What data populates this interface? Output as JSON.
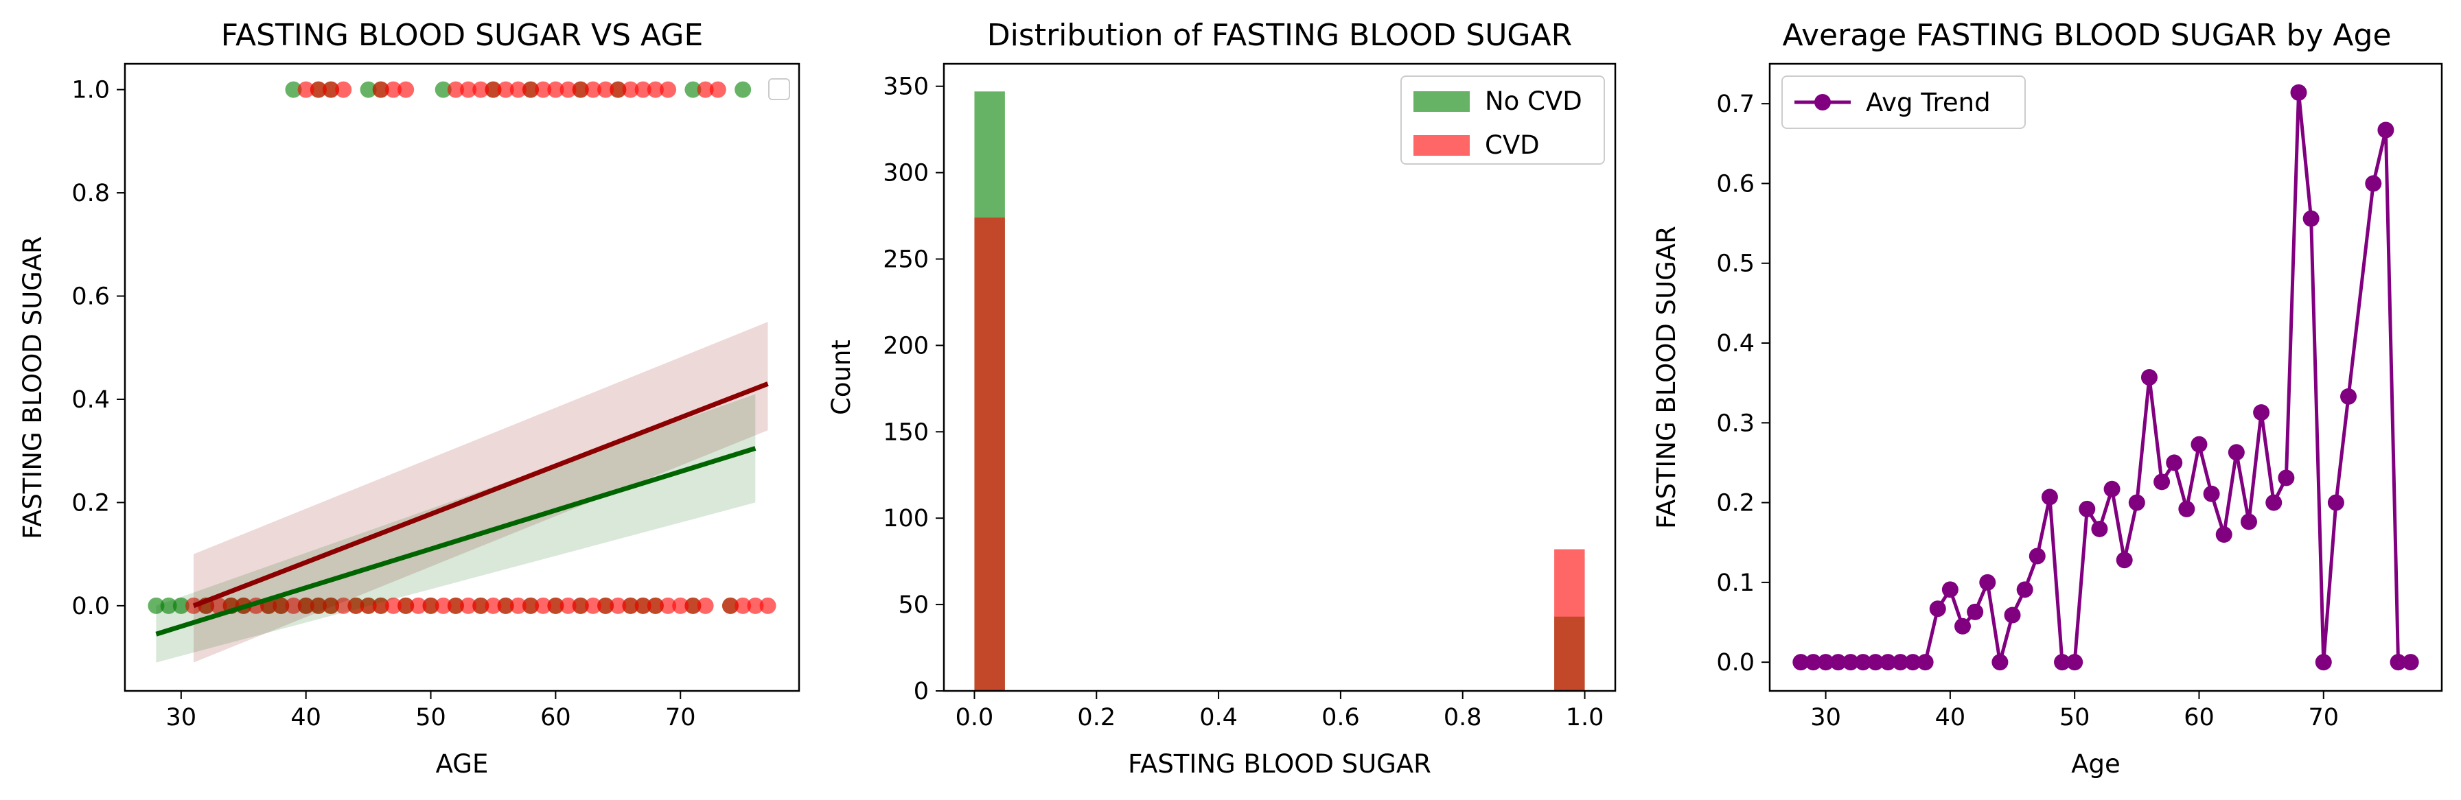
{
  "colors": {
    "no_cvd": "#008000",
    "cvd": "#ff0000",
    "cvd_line": "#8b0000",
    "no_cvd_line": "#006400",
    "trend": "#800080",
    "overlap": "#c04830"
  },
  "chart_data": [
    {
      "type": "scatter",
      "title": "FASTING BLOOD SUGAR VS AGE",
      "xlabel": "AGE",
      "ylabel": "FASTING BLOOD SUGAR",
      "xlim": [
        25.5,
        79.5
      ],
      "ylim": [
        -0.165,
        1.05
      ],
      "xticks": [
        30,
        40,
        50,
        60,
        70
      ],
      "yticks": [
        0.0,
        0.2,
        0.4,
        0.6,
        0.8,
        1.0
      ],
      "legend": "top-right (empty)",
      "series": [
        {
          "color": "no_cvd",
          "points": [
            [
              28,
              0
            ],
            [
              29,
              0
            ],
            [
              30,
              0
            ],
            [
              32,
              0
            ],
            [
              34,
              0
            ],
            [
              35,
              0
            ],
            [
              37,
              0
            ],
            [
              38,
              0
            ],
            [
              40,
              0
            ],
            [
              41,
              0
            ],
            [
              42,
              0
            ],
            [
              44,
              0
            ],
            [
              45,
              0
            ],
            [
              46,
              0
            ],
            [
              48,
              0
            ],
            [
              50,
              0
            ],
            [
              52,
              0
            ],
            [
              54,
              0
            ],
            [
              56,
              0
            ],
            [
              58,
              0
            ],
            [
              60,
              0
            ],
            [
              62,
              0
            ],
            [
              64,
              0
            ],
            [
              66,
              0
            ],
            [
              67,
              0
            ],
            [
              68,
              0
            ],
            [
              71,
              0
            ],
            [
              74,
              0
            ],
            [
              39,
              1
            ],
            [
              41,
              1
            ],
            [
              42,
              1
            ],
            [
              45,
              1
            ],
            [
              46,
              1
            ],
            [
              51,
              1
            ],
            [
              55,
              1
            ],
            [
              58,
              1
            ],
            [
              62,
              1
            ],
            [
              65,
              1
            ],
            [
              71,
              1
            ],
            [
              75,
              1
            ]
          ]
        },
        {
          "color": "cvd",
          "points": [
            [
              31,
              0
            ],
            [
              32,
              0
            ],
            [
              33,
              0
            ],
            [
              34,
              0
            ],
            [
              35,
              0
            ],
            [
              36,
              0
            ],
            [
              37,
              0
            ],
            [
              38,
              0
            ],
            [
              39,
              0
            ],
            [
              40,
              0
            ],
            [
              41,
              0
            ],
            [
              42,
              0
            ],
            [
              43,
              0
            ],
            [
              44,
              0
            ],
            [
              45,
              0
            ],
            [
              46,
              0
            ],
            [
              47,
              0
            ],
            [
              48,
              0
            ],
            [
              49,
              0
            ],
            [
              50,
              0
            ],
            [
              51,
              0
            ],
            [
              52,
              0
            ],
            [
              53,
              0
            ],
            [
              54,
              0
            ],
            [
              55,
              0
            ],
            [
              56,
              0
            ],
            [
              57,
              0
            ],
            [
              58,
              0
            ],
            [
              59,
              0
            ],
            [
              60,
              0
            ],
            [
              61,
              0
            ],
            [
              62,
              0
            ],
            [
              63,
              0
            ],
            [
              64,
              0
            ],
            [
              65,
              0
            ],
            [
              66,
              0
            ],
            [
              67,
              0
            ],
            [
              68,
              0
            ],
            [
              69,
              0
            ],
            [
              70,
              0
            ],
            [
              71,
              0
            ],
            [
              72,
              0
            ],
            [
              74,
              0
            ],
            [
              75,
              0
            ],
            [
              76,
              0
            ],
            [
              77,
              0
            ],
            [
              40,
              1
            ],
            [
              41,
              1
            ],
            [
              42,
              1
            ],
            [
              43,
              1
            ],
            [
              46,
              1
            ],
            [
              47,
              1
            ],
            [
              48,
              1
            ],
            [
              52,
              1
            ],
            [
              53,
              1
            ],
            [
              54,
              1
            ],
            [
              55,
              1
            ],
            [
              56,
              1
            ],
            [
              57,
              1
            ],
            [
              58,
              1
            ],
            [
              59,
              1
            ],
            [
              60,
              1
            ],
            [
              61,
              1
            ],
            [
              62,
              1
            ],
            [
              63,
              1
            ],
            [
              64,
              1
            ],
            [
              65,
              1
            ],
            [
              66,
              1
            ],
            [
              67,
              1
            ],
            [
              68,
              1
            ],
            [
              69,
              1
            ],
            [
              72,
              1
            ],
            [
              73,
              1
            ]
          ]
        }
      ],
      "regression": [
        {
          "color": "cvd_line",
          "x": [
            31,
            77
          ],
          "y": [
            0.0,
            0.43
          ],
          "band_lower_start": -0.11,
          "band_upper_start": 0.1,
          "band_lower_end": 0.34,
          "band_upper_end": 0.55
        },
        {
          "color": "no_cvd_line",
          "x": [
            28,
            76
          ],
          "y": [
            -0.055,
            0.305
          ],
          "band_lower_start": -0.11,
          "band_upper_start": 0.0,
          "band_lower_end": 0.2,
          "band_upper_end": 0.41
        }
      ]
    },
    {
      "type": "bar",
      "title": "Distribution of FASTING BLOOD SUGAR",
      "xlabel": "FASTING BLOOD SUGAR",
      "ylabel": "Count",
      "xlim": [
        -0.05,
        1.05
      ],
      "ylim": [
        0,
        363
      ],
      "xticks": [
        0.0,
        0.2,
        0.4,
        0.6,
        0.8,
        1.0
      ],
      "yticks": [
        0,
        50,
        100,
        150,
        200,
        250,
        300,
        350
      ],
      "bin_width": 0.05,
      "legend": "top-right",
      "series": [
        {
          "name": "No CVD",
          "color": "no_cvd",
          "bins": [
            [
              0.0,
              347
            ],
            [
              0.95,
              43
            ]
          ]
        },
        {
          "name": "CVD",
          "color": "cvd",
          "bins": [
            [
              0.0,
              274
            ],
            [
              0.95,
              82
            ]
          ]
        }
      ]
    },
    {
      "type": "line",
      "title": "Average FASTING BLOOD SUGAR by Age",
      "xlabel": "Age",
      "ylabel": "FASTING BLOOD SUGAR",
      "xlim": [
        25.5,
        79.5
      ],
      "ylim": [
        -0.036,
        0.75
      ],
      "xticks": [
        30,
        40,
        50,
        60,
        70
      ],
      "yticks": [
        0.0,
        0.1,
        0.2,
        0.3,
        0.4,
        0.5,
        0.6,
        0.7
      ],
      "legend": "top-left",
      "series": [
        {
          "name": "Avg Trend",
          "color": "trend",
          "x": [
            28,
            29,
            30,
            31,
            32,
            33,
            34,
            35,
            36,
            37,
            38,
            39,
            40,
            41,
            42,
            43,
            44,
            45,
            46,
            47,
            48,
            49,
            50,
            51,
            52,
            53,
            54,
            55,
            56,
            57,
            58,
            59,
            60,
            61,
            62,
            63,
            64,
            65,
            66,
            67,
            68,
            69,
            70,
            71,
            72,
            74,
            75,
            76,
            77
          ],
          "y": [
            0,
            0,
            0,
            0,
            0,
            0,
            0,
            0,
            0,
            0,
            0,
            0.067,
            0.091,
            0.045,
            0.063,
            0.1,
            0,
            0.059,
            0.091,
            0.133,
            0.207,
            0,
            0,
            0.192,
            0.167,
            0.217,
            0.128,
            0.2,
            0.357,
            0.226,
            0.25,
            0.192,
            0.273,
            0.211,
            0.16,
            0.263,
            0.176,
            0.313,
            0.2,
            0.231,
            0.714,
            0.556,
            0,
            0.2,
            0.333,
            0.6,
            0.667,
            0,
            0
          ]
        }
      ]
    }
  ]
}
